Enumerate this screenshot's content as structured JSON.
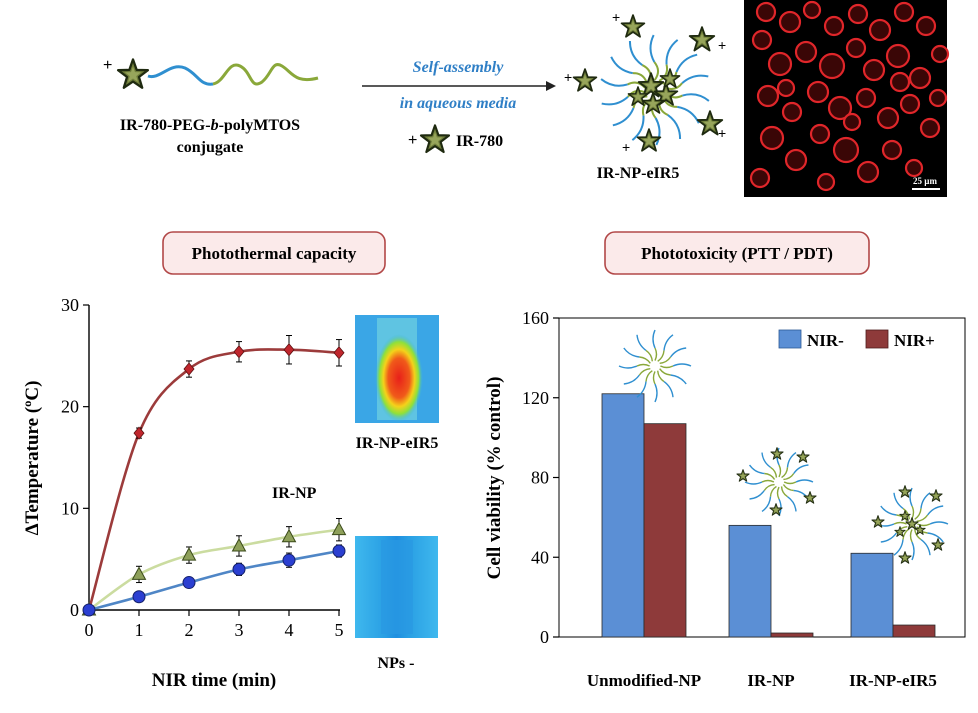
{
  "top": {
    "conjugate_label_line1": "IR-780-PEG-",
    "conjugate_label_b": "b",
    "conjugate_label_line1_end": "-polyMTOS",
    "conjugate_label_line2": "conjugate",
    "arrow_label_line1": "Self-assembly",
    "arrow_label_line2": "in aqueous media",
    "free_dye_label": "IR-780",
    "micelle_label": "IR-NP-eIR5",
    "plus_sign": "+",
    "scale_bar_label": "25 µm"
  },
  "sections": {
    "left_title": "Photothermal capacity",
    "right_title": "Phototoxicity (PTT / PDT)"
  },
  "colors": {
    "star_fill": "#6f7d3a",
    "star_dark": "#1f2a10",
    "peg_blue": "#2f8fd0",
    "mtos_green": "#8aa83a",
    "section_box_fill": "#fbeaea",
    "section_box_stroke": "#b24848",
    "arrow_text_blue": "#2f7fc6",
    "nir_minus_bar": "#5b8fd5",
    "nir_plus_bar": "#8e3a3a"
  },
  "chart_data": [
    {
      "type": "line",
      "xlabel": "NIR time (min)",
      "ylabel": "ΔTemperature (ºC)",
      "xlim": [
        0,
        5
      ],
      "ylim": [
        0,
        30
      ],
      "xticks": [
        "0",
        "1",
        "2",
        "3",
        "4",
        "5"
      ],
      "yticks": [
        "0",
        "10",
        "20",
        "30"
      ],
      "x": [
        0,
        1,
        2,
        3,
        4,
        5
      ],
      "series": [
        {
          "name": "IR-NP-eIR5",
          "marker": "diamond",
          "color": "#9c3b3b",
          "marker_color": "#c0262d",
          "values": [
            0,
            17.4,
            23.7,
            25.4,
            25.6,
            25.3
          ],
          "errors": [
            0,
            0.5,
            0.8,
            1.0,
            1.4,
            1.3
          ]
        },
        {
          "name": "IR-NP",
          "marker": "triangle",
          "color": "#cbdca0",
          "marker_color": "#8ea05a",
          "values": [
            0,
            3.5,
            5.4,
            6.3,
            7.2,
            7.9
          ],
          "errors": [
            0,
            0.8,
            0.8,
            1.0,
            1.0,
            1.1
          ]
        },
        {
          "name": "NPs -",
          "marker": "circle",
          "color": "#4f86c6",
          "marker_color": "#2b3fd1",
          "values": [
            0,
            1.3,
            2.7,
            4.0,
            4.9,
            5.8
          ],
          "errors": [
            0,
            0.3,
            0.4,
            0.6,
            0.7,
            0.6
          ]
        }
      ],
      "inset_labels": [
        "IR-NP-eIR5",
        "NPs -"
      ],
      "series_label": "IR-NP"
    },
    {
      "type": "bar",
      "ylabel": "Cell viability (% control)",
      "categories": [
        "Unmodified-NP",
        "IR-NP",
        "IR-NP-eIR5"
      ],
      "ylim": [
        0,
        160
      ],
      "yticks": [
        "0",
        "40",
        "80",
        "120",
        "160"
      ],
      "legend_position": "top-right",
      "series": [
        {
          "name": "NIR-",
          "color": "#5b8fd5",
          "values": [
            122,
            56,
            42
          ]
        },
        {
          "name": "NIR+",
          "color": "#8e3a3a",
          "values": [
            107,
            2,
            6
          ]
        }
      ]
    }
  ]
}
